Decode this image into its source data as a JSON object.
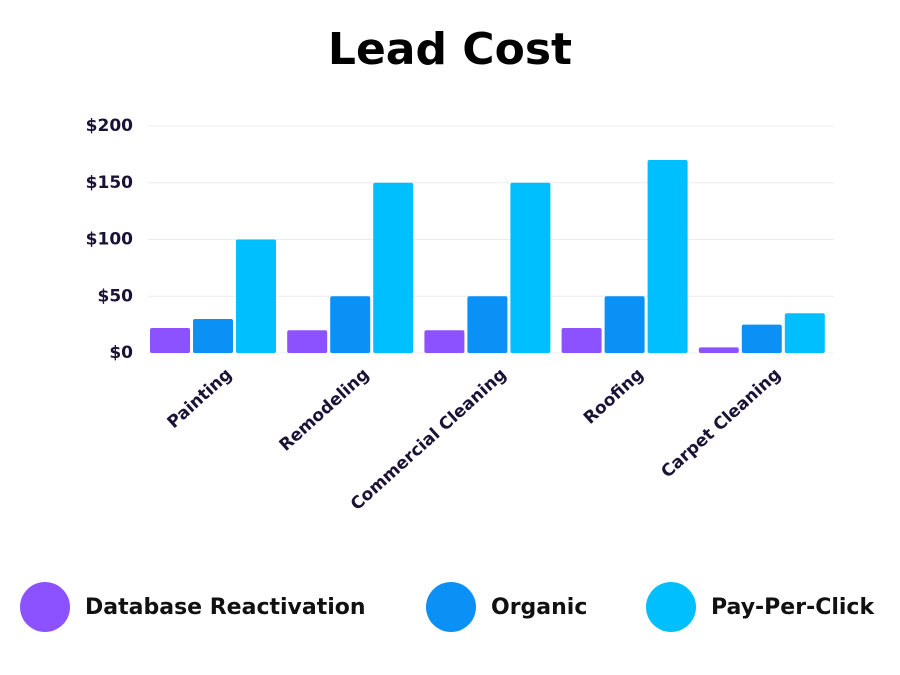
{
  "chart_data": {
    "type": "bar",
    "title": "Lead Cost",
    "categories": [
      "Painting",
      "Remodeling",
      "Commercial Cleaning",
      "Roofing",
      "Carpet Cleaning"
    ],
    "series": [
      {
        "name": "Database Reactivation",
        "color": "#8c52ff",
        "values": [
          22,
          20,
          20,
          22,
          5
        ]
      },
      {
        "name": "Organic",
        "color": "#0b90f5",
        "values": [
          30,
          50,
          50,
          50,
          25
        ]
      },
      {
        "name": "Pay-Per-Click",
        "color": "#00bfff",
        "values": [
          100,
          150,
          150,
          170,
          35
        ]
      }
    ],
    "ylim": [
      0,
      200
    ],
    "yticks": [
      {
        "value": 0,
        "label": "$0"
      },
      {
        "value": 50,
        "label": "$50"
      },
      {
        "value": 100,
        "label": "$100"
      },
      {
        "value": 150,
        "label": "$150"
      },
      {
        "value": 200,
        "label": "$200"
      }
    ],
    "grid": true
  }
}
